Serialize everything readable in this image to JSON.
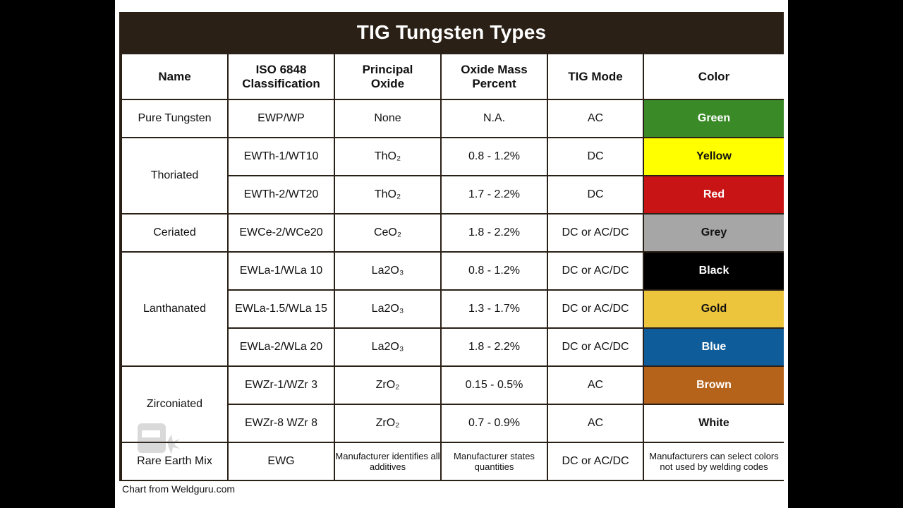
{
  "title": "TIG Tungsten Types",
  "headers": [
    "Name",
    "ISO 6848 Classification",
    "Principal Oxide",
    "Oxide Mass Percent",
    "TIG Mode",
    "Color"
  ],
  "groups": [
    {
      "name": "Pure Tungsten",
      "rows": [
        {
          "iso": "EWP/WP",
          "oxide": "None",
          "mass": "N.A.",
          "mode": "AC",
          "color": {
            "label": "Green",
            "bg": "#3a8a28",
            "fg": "#ffffff"
          }
        }
      ]
    },
    {
      "name": "Thoriated",
      "rows": [
        {
          "iso": "EWTh-1/WT10",
          "oxide": "ThO₂",
          "mass": "0.8 - 1.2%",
          "mode": "DC",
          "color": {
            "label": "Yellow",
            "bg": "#ffff00",
            "fg": "#111111"
          }
        },
        {
          "iso": "EWTh-2/WT20",
          "oxide": "ThO₂",
          "mass": "1.7 - 2.2%",
          "mode": "DC",
          "color": {
            "label": "Red",
            "bg": "#c81414",
            "fg": "#ffffff"
          }
        }
      ]
    },
    {
      "name": "Ceriated",
      "rows": [
        {
          "iso": "EWCe-2/WCe20",
          "oxide": "CeO₂",
          "mass": "1.8 - 2.2%",
          "mode": "DC or AC/DC",
          "color": {
            "label": "Grey",
            "bg": "#a6a6a6",
            "fg": "#111111"
          }
        }
      ]
    },
    {
      "name": "Lanthanated",
      "rows": [
        {
          "iso": "EWLa-1/WLa 10",
          "oxide": "La2O₃",
          "mass": "0.8 - 1.2%",
          "mode": "DC or AC/DC",
          "color": {
            "label": "Black",
            "bg": "#000000",
            "fg": "#ffffff"
          }
        },
        {
          "iso": "EWLa-1.5/WLa 15",
          "oxide": "La2O₃",
          "mass": "1.3 - 1.7%",
          "mode": "DC or AC/DC",
          "color": {
            "label": "Gold",
            "bg": "#ecc53c",
            "fg": "#111111"
          }
        },
        {
          "iso": "EWLa-2/WLa 20",
          "oxide": "La2O₃",
          "mass": "1.8 - 2.2%",
          "mode": "DC or AC/DC",
          "color": {
            "label": "Blue",
            "bg": "#0f5c9a",
            "fg": "#ffffff"
          }
        }
      ]
    },
    {
      "name": "Zirconiated",
      "rows": [
        {
          "iso": "EWZr-1/WZr 3",
          "oxide": "ZrO₂",
          "mass": "0.15 - 0.5%",
          "mode": "AC",
          "color": {
            "label": "Brown",
            "bg": "#b5621a",
            "fg": "#ffffff"
          }
        },
        {
          "iso": "EWZr-8 WZr 8",
          "oxide": "ZrO₂",
          "mass": "0.7 - 0.9%",
          "mode": "AC",
          "color": {
            "label": "White",
            "bg": "#ffffff",
            "fg": "#111111"
          }
        }
      ]
    },
    {
      "name": "Rare Earth Mix",
      "rows": [
        {
          "iso": "EWG",
          "oxide": "Manufacturer identifies all additives",
          "mass": "Manufacturer states quantities",
          "mode": "DC or AC/DC",
          "color": {
            "label": "Manufacturers can select colors not used by welding codes",
            "bg": "#ffffff",
            "fg": "#111111"
          },
          "small": true
        }
      ]
    }
  ],
  "footer": "Chart from Weldguru.com",
  "watermark_icon": "welding-helmet-icon"
}
